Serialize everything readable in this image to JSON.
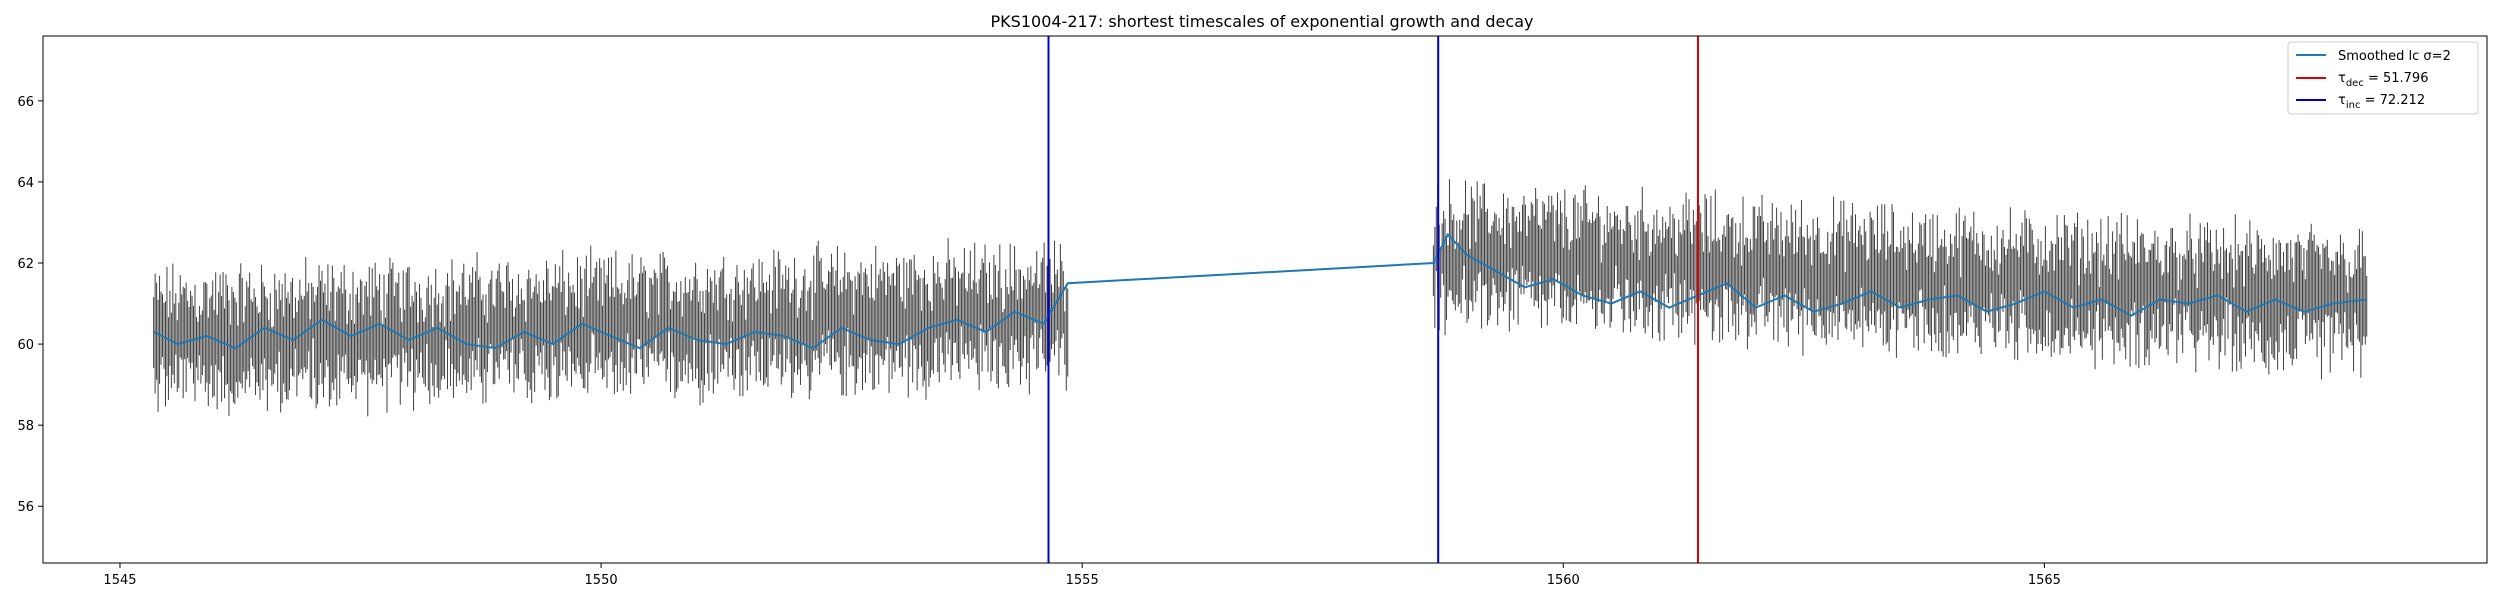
{
  "chart_data": {
    "type": "line",
    "title": "PKS1004-217: shortest timescales of exponential growth and decay",
    "xlabel": "",
    "ylabel": "",
    "xlim": [
      1544.2,
      1569.6
    ],
    "ylim": [
      54.6,
      67.6
    ],
    "x_ticks": [
      1545,
      1550,
      1555,
      1560,
      1565
    ],
    "y_ticks": [
      56,
      58,
      60,
      62,
      64,
      66
    ],
    "x_tick_labels": [
      "1545",
      "1550",
      "1555",
      "1560",
      "1565"
    ],
    "y_tick_labels": [
      "56",
      "58",
      "60",
      "62",
      "64",
      "66"
    ],
    "grid": false,
    "legend_position": "top-right",
    "series": [
      {
        "name": "Smoothed lc σ=2",
        "color": "#1f77b4",
        "x": [
          1545.35,
          1545.6,
          1545.9,
          1546.2,
          1546.5,
          1546.8,
          1547.1,
          1547.4,
          1547.7,
          1548.0,
          1548.3,
          1548.6,
          1548.9,
          1549.2,
          1549.5,
          1549.8,
          1550.1,
          1550.4,
          1550.7,
          1551.0,
          1551.3,
          1551.6,
          1551.9,
          1552.2,
          1552.5,
          1552.8,
          1553.1,
          1553.4,
          1553.7,
          1554.0,
          1554.3,
          1554.6,
          1554.85,
          1558.65,
          1558.8,
          1559.0,
          1559.3,
          1559.6,
          1559.9,
          1560.2,
          1560.5,
          1560.8,
          1561.1,
          1561.4,
          1561.7,
          1562.0,
          1562.3,
          1562.6,
          1562.9,
          1563.2,
          1563.5,
          1563.8,
          1564.1,
          1564.4,
          1564.7,
          1565.0,
          1565.3,
          1565.6,
          1565.9,
          1566.2,
          1566.5,
          1566.8,
          1567.1,
          1567.4,
          1567.7,
          1568.0,
          1568.35
        ],
        "y": [
          60.3,
          60.0,
          60.2,
          59.9,
          60.4,
          60.1,
          60.6,
          60.2,
          60.5,
          60.1,
          60.4,
          60.0,
          59.9,
          60.3,
          60.0,
          60.5,
          60.2,
          59.9,
          60.4,
          60.1,
          60.0,
          60.3,
          60.2,
          59.9,
          60.4,
          60.1,
          60.0,
          60.4,
          60.6,
          60.3,
          60.8,
          60.5,
          61.5,
          62.0,
          62.7,
          62.2,
          61.8,
          61.4,
          61.6,
          61.2,
          61.0,
          61.3,
          60.9,
          61.2,
          61.5,
          60.9,
          61.2,
          60.8,
          61.0,
          61.3,
          60.9,
          61.1,
          61.2,
          60.8,
          61.0,
          61.3,
          60.9,
          61.1,
          60.7,
          61.1,
          61.0,
          61.2,
          60.8,
          61.1,
          60.8,
          61.0,
          61.1
        ]
      }
    ],
    "errorbars": {
      "color": "#3f3f3f",
      "segments": [
        {
          "x_start": 1545.35,
          "x_end": 1554.85,
          "center_start": 60.1,
          "center_end": 60.7,
          "half_width": 1.1,
          "sample_count": 620
        },
        {
          "x_start": 1558.65,
          "x_end": 1568.35,
          "center_start": 62.2,
          "center_end": 61.0,
          "half_width": 1.1,
          "sample_count": 640
        }
      ]
    },
    "vlines": [
      {
        "x": 1554.65,
        "color": "#0000cc"
      },
      {
        "x": 1558.7,
        "color": "#0000cc"
      },
      {
        "x": 1561.4,
        "color": "#dd0000"
      }
    ],
    "legend": [
      {
        "label": "Smoothed lc σ=2",
        "color": "#1f77b4"
      },
      {
        "label_base": "τ",
        "label_sub": "dec",
        "label_rest": " = 51.796",
        "color": "#dd0000"
      },
      {
        "label_base": "τ",
        "label_sub": "inc",
        "label_rest": " = 72.212",
        "color": "#0000cc"
      }
    ]
  }
}
